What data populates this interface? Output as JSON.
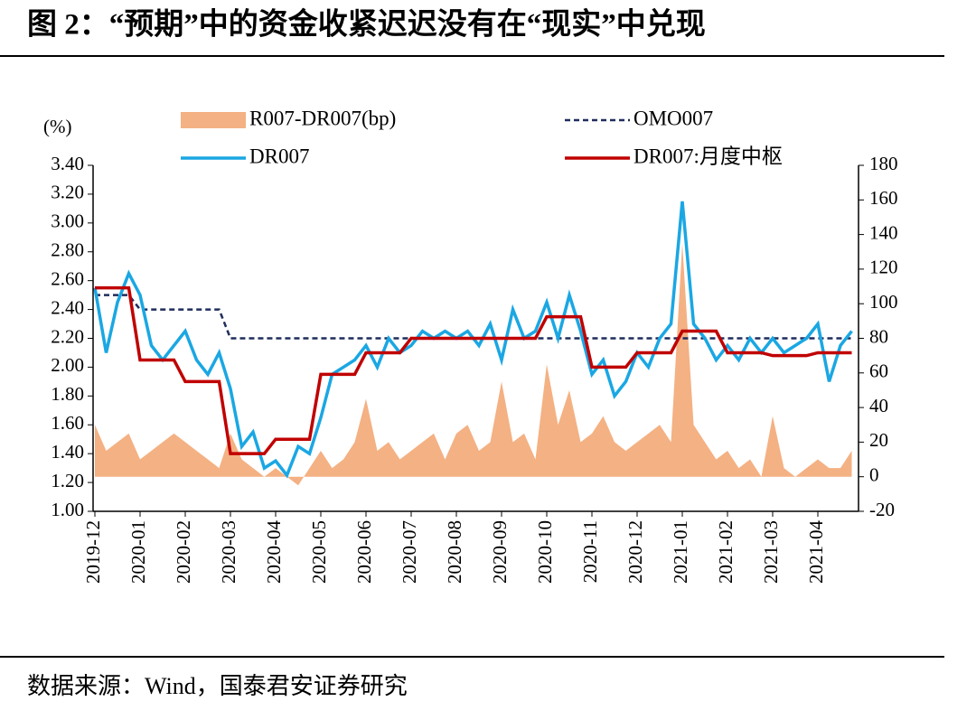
{
  "header": {
    "title": "图 2：“预期”中的资金收紧迟迟没有在“现实”中兑现"
  },
  "chart_data": {
    "type": "line",
    "y_label": "(%)",
    "categories": [
      "2019-12",
      null,
      null,
      null,
      "2020-01",
      null,
      null,
      null,
      "2020-02",
      null,
      null,
      null,
      "2020-03",
      null,
      null,
      null,
      "2020-04",
      null,
      null,
      null,
      "2020-05",
      null,
      null,
      null,
      "2020-06",
      null,
      null,
      null,
      "2020-07",
      null,
      null,
      null,
      "2020-08",
      null,
      null,
      null,
      "2020-09",
      null,
      null,
      null,
      "2020-10",
      null,
      null,
      null,
      "2020-11",
      null,
      null,
      null,
      "2020-12",
      null,
      null,
      null,
      "2021-01",
      null,
      null,
      null,
      "2021-02",
      null,
      null,
      null,
      "2021-03",
      null,
      null,
      null,
      "2021-04",
      null,
      null,
      null
    ],
    "series": [
      {
        "name": "R007-DR007(bp)",
        "type": "area",
        "axis": "y2",
        "color": "#f4b183",
        "values": [
          30,
          15,
          20,
          25,
          10,
          15,
          20,
          25,
          20,
          15,
          10,
          5,
          25,
          10,
          5,
          0,
          5,
          0,
          -5,
          5,
          15,
          5,
          10,
          20,
          45,
          15,
          20,
          10,
          15,
          20,
          25,
          10,
          25,
          30,
          15,
          20,
          55,
          20,
          25,
          10,
          65,
          30,
          50,
          20,
          25,
          35,
          20,
          15,
          20,
          25,
          30,
          20,
          135,
          30,
          20,
          10,
          15,
          5,
          10,
          0,
          35,
          5,
          0,
          5,
          10,
          5,
          5,
          15
        ]
      },
      {
        "name": "OMO007",
        "type": "line",
        "line_style": "dashed",
        "color": "#1f2d5c",
        "values": [
          2.5,
          2.5,
          2.5,
          2.5,
          2.4,
          2.4,
          2.4,
          2.4,
          2.4,
          2.4,
          2.4,
          2.4,
          2.2,
          2.2,
          2.2,
          2.2,
          2.2,
          2.2,
          2.2,
          2.2,
          2.2,
          2.2,
          2.2,
          2.2,
          2.2,
          2.2,
          2.2,
          2.2,
          2.2,
          2.2,
          2.2,
          2.2,
          2.2,
          2.2,
          2.2,
          2.2,
          2.2,
          2.2,
          2.2,
          2.2,
          2.2,
          2.2,
          2.2,
          2.2,
          2.2,
          2.2,
          2.2,
          2.2,
          2.2,
          2.2,
          2.2,
          2.2,
          2.2,
          2.2,
          2.2,
          2.2,
          2.2,
          2.2,
          2.2,
          2.2,
          2.2,
          2.2,
          2.2,
          2.2,
          2.2,
          2.2,
          2.2,
          2.2
        ]
      },
      {
        "name": "DR007",
        "type": "line",
        "line_style": "solid",
        "color": "#1aa7e3",
        "values": [
          2.55,
          2.1,
          2.45,
          2.65,
          2.5,
          2.15,
          2.05,
          2.15,
          2.25,
          2.05,
          1.95,
          2.1,
          1.85,
          1.45,
          1.55,
          1.3,
          1.35,
          1.25,
          1.45,
          1.4,
          1.65,
          1.95,
          2.0,
          2.05,
          2.15,
          2.0,
          2.2,
          2.1,
          2.15,
          2.25,
          2.2,
          2.25,
          2.2,
          2.25,
          2.15,
          2.3,
          2.05,
          2.4,
          2.2,
          2.25,
          2.45,
          2.2,
          2.5,
          2.25,
          1.95,
          2.05,
          1.8,
          1.9,
          2.1,
          2.0,
          2.2,
          2.3,
          3.15,
          2.3,
          2.2,
          2.05,
          2.15,
          2.05,
          2.2,
          2.1,
          2.2,
          2.1,
          2.15,
          2.2,
          2.3,
          1.9,
          2.15,
          2.25
        ]
      },
      {
        "name": "DR007:月度中枢",
        "type": "line",
        "line_style": "solid",
        "color": "#c00000",
        "values": [
          2.55,
          2.55,
          2.55,
          2.55,
          2.05,
          2.05,
          2.05,
          2.05,
          1.9,
          1.9,
          1.9,
          1.9,
          1.4,
          1.4,
          1.4,
          1.4,
          1.5,
          1.5,
          1.5,
          1.5,
          1.95,
          1.95,
          1.95,
          1.95,
          2.1,
          2.1,
          2.1,
          2.1,
          2.2,
          2.2,
          2.2,
          2.2,
          2.2,
          2.2,
          2.2,
          2.2,
          2.2,
          2.2,
          2.2,
          2.2,
          2.35,
          2.35,
          2.35,
          2.35,
          2.0,
          2.0,
          2.0,
          2.0,
          2.1,
          2.1,
          2.1,
          2.1,
          2.25,
          2.25,
          2.25,
          2.25,
          2.1,
          2.1,
          2.1,
          2.1,
          2.08,
          2.08,
          2.08,
          2.08,
          2.1,
          2.1,
          2.1,
          2.1
        ]
      }
    ],
    "ylim": [
      1,
      3.4
    ],
    "yticks": [
      {
        "value": 1,
        "label": "1.00"
      },
      {
        "value": 1.2,
        "label": "1.20"
      },
      {
        "value": 1.4,
        "label": "1.40"
      },
      {
        "value": 1.6,
        "label": "1.60"
      },
      {
        "value": 1.8,
        "label": "1.80"
      },
      {
        "value": 2,
        "label": "2.00"
      },
      {
        "value": 2.2,
        "label": "2.20"
      },
      {
        "value": 2.4,
        "label": "2.40"
      },
      {
        "value": 2.6,
        "label": "2.60"
      },
      {
        "value": 2.8,
        "label": "2.80"
      },
      {
        "value": 3,
        "label": "3.00"
      },
      {
        "value": 3.2,
        "label": "3.20"
      },
      {
        "value": 3.4,
        "label": "3.40"
      }
    ],
    "y2lim": [
      -20,
      180
    ],
    "y2ticks": [
      -20,
      0,
      20,
      40,
      60,
      80,
      100,
      120,
      140,
      160,
      180
    ]
  },
  "footer": {
    "source": "数据来源：Wind，国泰君安证券研究"
  }
}
